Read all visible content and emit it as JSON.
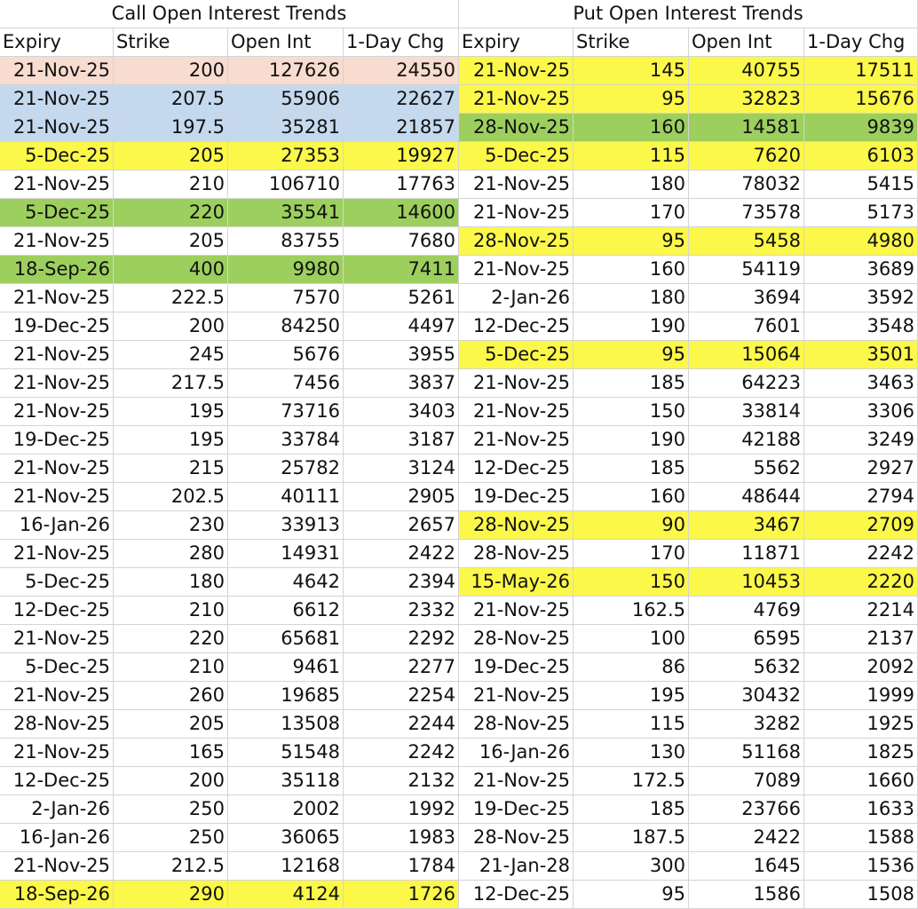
{
  "tables": [
    {
      "title": "Call Open Interest Trends",
      "headers": [
        "Expiry",
        "Strike",
        "Open Int",
        "1-Day Chg"
      ],
      "row_colors": [
        "#f8dcd0",
        "#c5d9ee",
        "#c5d9ee",
        "#fbf84a",
        null,
        "#9dcf5e",
        null,
        "#9dcf5e",
        null,
        null,
        null,
        null,
        null,
        null,
        null,
        null,
        null,
        null,
        null,
        null,
        null,
        null,
        null,
        null,
        null,
        null,
        null,
        null,
        null,
        "#fbf84a"
      ],
      "rows": [
        [
          "21-Nov-25",
          200,
          127626,
          24550
        ],
        [
          "21-Nov-25",
          207.5,
          55906,
          22627
        ],
        [
          "21-Nov-25",
          197.5,
          35281,
          21857
        ],
        [
          "5-Dec-25",
          205,
          27353,
          19927
        ],
        [
          "21-Nov-25",
          210,
          106710,
          17763
        ],
        [
          "5-Dec-25",
          220,
          35541,
          14600
        ],
        [
          "21-Nov-25",
          205,
          83755,
          7680
        ],
        [
          "18-Sep-26",
          400,
          9980,
          7411
        ],
        [
          "21-Nov-25",
          222.5,
          7570,
          5261
        ],
        [
          "19-Dec-25",
          200,
          84250,
          4497
        ],
        [
          "21-Nov-25",
          245,
          5676,
          3955
        ],
        [
          "21-Nov-25",
          217.5,
          7456,
          3837
        ],
        [
          "21-Nov-25",
          195,
          73716,
          3403
        ],
        [
          "19-Dec-25",
          195,
          33784,
          3187
        ],
        [
          "21-Nov-25",
          215,
          25782,
          3124
        ],
        [
          "21-Nov-25",
          202.5,
          40111,
          2905
        ],
        [
          "16-Jan-26",
          230,
          33913,
          2657
        ],
        [
          "21-Nov-25",
          280,
          14931,
          2422
        ],
        [
          "5-Dec-25",
          180,
          4642,
          2394
        ],
        [
          "12-Dec-25",
          210,
          6612,
          2332
        ],
        [
          "21-Nov-25",
          220,
          65681,
          2292
        ],
        [
          "5-Dec-25",
          210,
          9461,
          2277
        ],
        [
          "21-Nov-25",
          260,
          19685,
          2254
        ],
        [
          "28-Nov-25",
          205,
          13508,
          2244
        ],
        [
          "21-Nov-25",
          165,
          51548,
          2242
        ],
        [
          "12-Dec-25",
          200,
          35118,
          2132
        ],
        [
          "2-Jan-26",
          250,
          2002,
          1992
        ],
        [
          "16-Jan-26",
          250,
          36065,
          1983
        ],
        [
          "21-Nov-25",
          212.5,
          12168,
          1784
        ],
        [
          "18-Sep-26",
          290,
          4124,
          1726
        ]
      ]
    },
    {
      "title": "Put Open Interest Trends",
      "headers": [
        "Expiry",
        "Strike",
        "Open Int",
        "1-Day Chg"
      ],
      "row_colors": [
        "#fbf84a",
        "#fbf84a",
        "#9dcf5e",
        "#fbf84a",
        null,
        null,
        "#fbf84a",
        null,
        null,
        null,
        "#fbf84a",
        null,
        null,
        null,
        null,
        null,
        "#fbf84a",
        null,
        "#fbf84a",
        null,
        null,
        null,
        null,
        null,
        null,
        null,
        null,
        null,
        null,
        null
      ],
      "rows": [
        [
          "21-Nov-25",
          145,
          40755,
          17511
        ],
        [
          "21-Nov-25",
          95,
          32823,
          15676
        ],
        [
          "28-Nov-25",
          160,
          14581,
          9839
        ],
        [
          "5-Dec-25",
          115,
          7620,
          6103
        ],
        [
          "21-Nov-25",
          180,
          78032,
          5415
        ],
        [
          "21-Nov-25",
          170,
          73578,
          5173
        ],
        [
          "28-Nov-25",
          95,
          5458,
          4980
        ],
        [
          "21-Nov-25",
          160,
          54119,
          3689
        ],
        [
          "2-Jan-26",
          180,
          3694,
          3592
        ],
        [
          "12-Dec-25",
          190,
          7601,
          3548
        ],
        [
          "5-Dec-25",
          95,
          15064,
          3501
        ],
        [
          "21-Nov-25",
          185,
          64223,
          3463
        ],
        [
          "21-Nov-25",
          150,
          33814,
          3306
        ],
        [
          "21-Nov-25",
          190,
          42188,
          3249
        ],
        [
          "12-Dec-25",
          185,
          5562,
          2927
        ],
        [
          "19-Dec-25",
          160,
          48644,
          2794
        ],
        [
          "28-Nov-25",
          90,
          3467,
          2709
        ],
        [
          "28-Nov-25",
          170,
          11871,
          2242
        ],
        [
          "15-May-26",
          150,
          10453,
          2220
        ],
        [
          "21-Nov-25",
          162.5,
          4769,
          2214
        ],
        [
          "28-Nov-25",
          100,
          6595,
          2137
        ],
        [
          "19-Dec-25",
          86,
          5632,
          2092
        ],
        [
          "21-Nov-25",
          195,
          30432,
          1999
        ],
        [
          "28-Nov-25",
          115,
          3282,
          1925
        ],
        [
          "16-Jan-26",
          130,
          51168,
          1825
        ],
        [
          "21-Nov-25",
          172.5,
          7089,
          1660
        ],
        [
          "19-Dec-25",
          185,
          23766,
          1633
        ],
        [
          "28-Nov-25",
          187.5,
          2422,
          1588
        ],
        [
          "21-Jan-28",
          300,
          1645,
          1536
        ],
        [
          "12-Dec-25",
          95,
          1586,
          1508
        ]
      ]
    }
  ]
}
